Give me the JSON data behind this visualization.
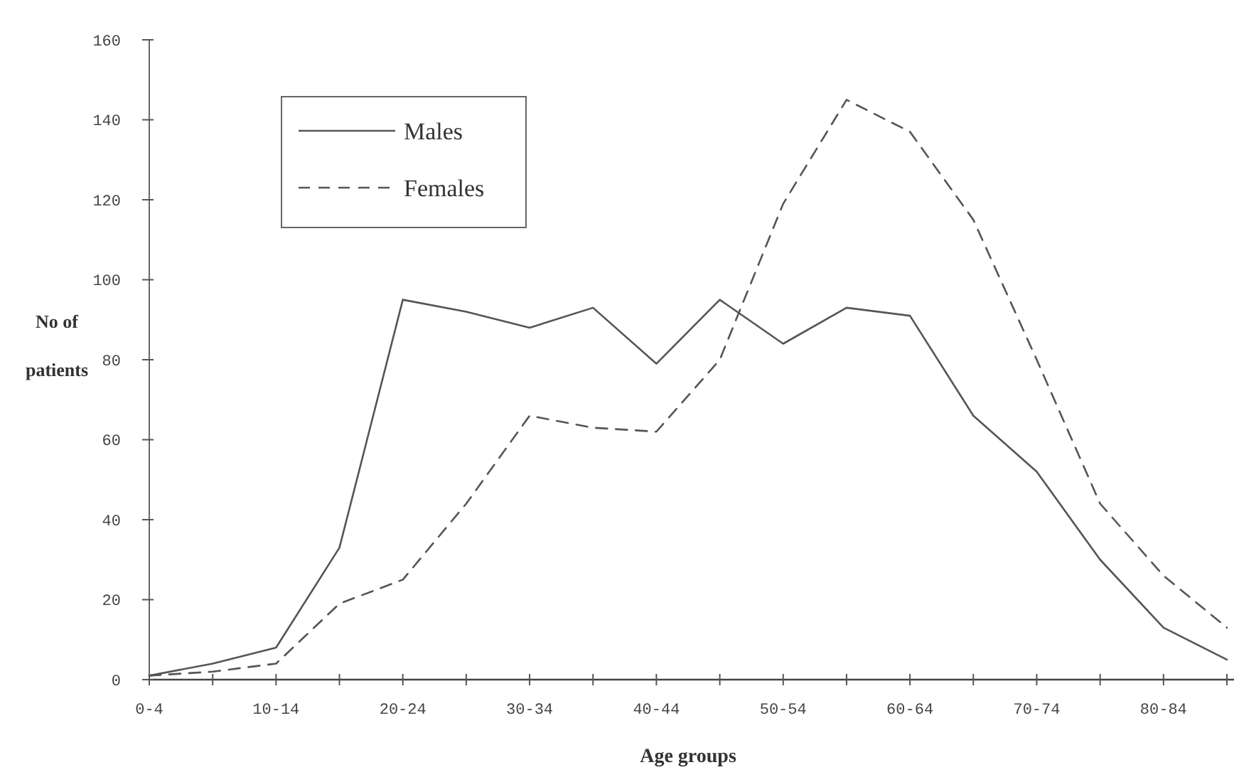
{
  "chart_data": {
    "type": "line",
    "xlabel": "Age groups",
    "ylabel": "No of patients",
    "categories": [
      "0-4",
      null,
      "10-14",
      null,
      "20-24",
      null,
      "30-34",
      null,
      "40-44",
      null,
      "50-54",
      null,
      "60-64",
      null,
      "70-74",
      null,
      "80-84",
      null
    ],
    "ylim": [
      0,
      160
    ],
    "yticks": [
      0,
      20,
      40,
      60,
      80,
      100,
      120,
      140,
      160
    ],
    "grid": false,
    "legend": "top left",
    "marker": "none",
    "series": [
      {
        "name": "Males",
        "color": "#555555",
        "line_style": "solid",
        "values": [
          1,
          4,
          8,
          33,
          95,
          92,
          88,
          93,
          79,
          95,
          84,
          93,
          91,
          66,
          52,
          30,
          13,
          5
        ]
      },
      {
        "name": "Females",
        "color": "#555555",
        "line_style": "dashed",
        "values": [
          1,
          2,
          4,
          19,
          25,
          44,
          66,
          63,
          62,
          80,
          119,
          145,
          137,
          115,
          80,
          44,
          26,
          13
        ]
      }
    ]
  }
}
